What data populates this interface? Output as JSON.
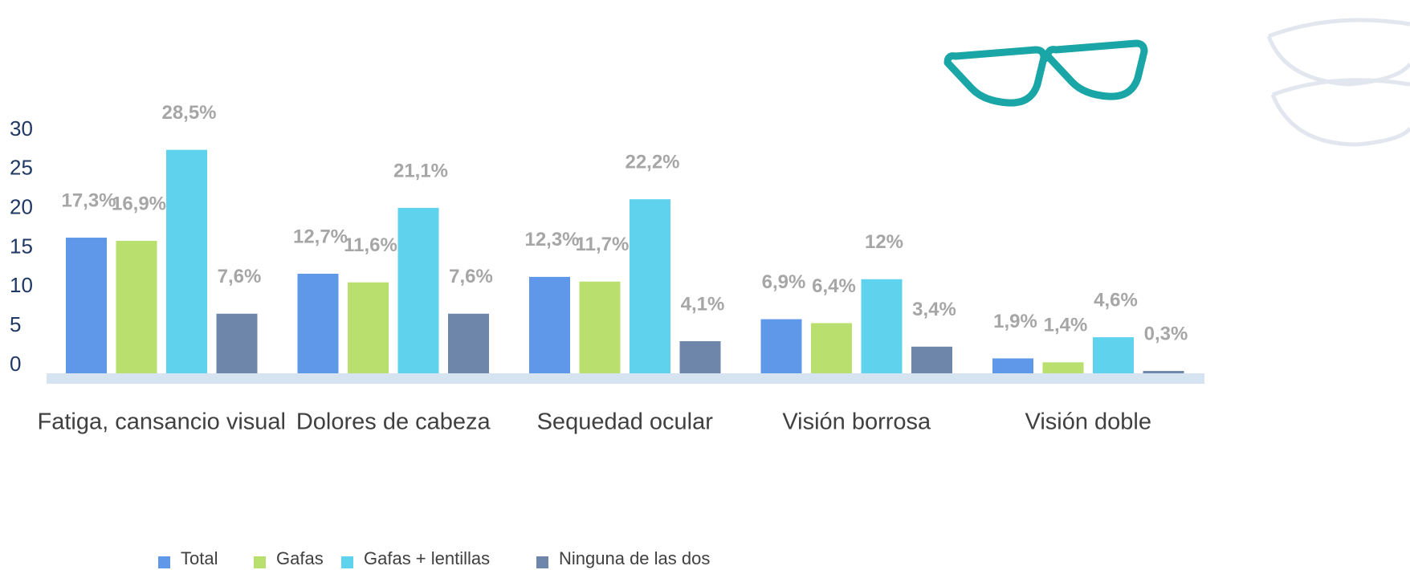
{
  "chart_data": {
    "type": "bar",
    "categories": [
      "Fatiga, cansancio visual",
      "Dolores de cabeza",
      "Sequedad ocular",
      "Visión borrosa",
      "Visión doble"
    ],
    "series": [
      {
        "name": "Total",
        "color": "#5f98e8",
        "values": [
          17.3,
          12.7,
          12.3,
          6.9,
          1.9
        ],
        "value_labels": [
          "17,3%",
          "12,7%",
          "12,3%",
          "6,9%",
          "1,9%"
        ]
      },
      {
        "name": "Gafas",
        "color": "#b9e06e",
        "values": [
          16.9,
          11.6,
          11.7,
          6.4,
          1.4
        ],
        "value_labels": [
          "16,9%",
          "11,6%",
          "11,7%",
          "6,4%",
          "1,4%"
        ]
      },
      {
        "name": "Gafas + lentillas",
        "color": "#5fd3ee",
        "values": [
          28.5,
          21.1,
          22.2,
          12,
          4.6
        ],
        "value_labels": [
          "28,5%",
          "21,1%",
          "22,2%",
          "12%",
          "4,6%"
        ]
      },
      {
        "name": "Ninguna de las dos",
        "color": "#6f86ab",
        "values": [
          7.6,
          7.6,
          4.1,
          3.4,
          0.3
        ],
        "value_labels": [
          "7,6%",
          "7,6%",
          "4,1%",
          "3,4%",
          "0,3%"
        ]
      }
    ],
    "ylim": [
      0,
      30
    ],
    "yticks": [
      0,
      5,
      10,
      15,
      20,
      25,
      30
    ],
    "grid": false
  }
}
